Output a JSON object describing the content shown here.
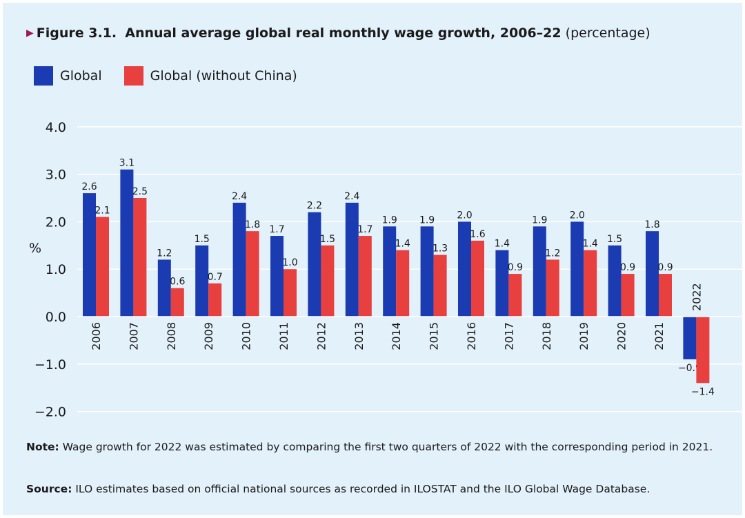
{
  "title": {
    "marker": "▶",
    "label": "Figure 3.1.",
    "main": "Annual average global real monthly wage growth, 2006–22",
    "unit": "(percentage)"
  },
  "legend": [
    {
      "label": "Global",
      "color": "#1b3bb3"
    },
    {
      "label": "Global (without China)",
      "color": "#e8403f"
    }
  ],
  "note": {
    "label": "Note:",
    "text": "Wage growth for 2022 was estimated by comparing the first two quarters of 2022 with the corresponding period in 2021."
  },
  "source": {
    "label": "Source:",
    "text": "ILO estimates based on official national sources as recorded in ILOSTAT and the ILO Global Wage Database."
  },
  "chart_data": {
    "type": "bar",
    "ylabel": "%",
    "ylim": [
      -2.0,
      4.0
    ],
    "yticks": [
      "−2.0",
      "−1.0",
      "0.0",
      "1.0",
      "2.0",
      "3.0",
      "4.0"
    ],
    "grid": true,
    "legend_position": "top-left",
    "categories": [
      "2006",
      "2007",
      "2008",
      "2009",
      "2010",
      "2011",
      "2012",
      "2013",
      "2014",
      "2015",
      "2016",
      "2017",
      "2018",
      "2019",
      "2020",
      "2021",
      "2022"
    ],
    "series": [
      {
        "name": "Global",
        "color": "#1b3bb3",
        "values": [
          2.6,
          3.1,
          1.2,
          1.5,
          2.4,
          1.7,
          2.2,
          2.4,
          1.9,
          1.9,
          2.0,
          1.4,
          1.9,
          2.0,
          1.5,
          1.8,
          -0.9
        ],
        "labels": [
          "2.6",
          "3.1",
          "1.2",
          "1.5",
          "2.4",
          "1.7",
          "2.2",
          "2.4",
          "1.9",
          "1.9",
          "2.0",
          "1.4",
          "1.9",
          "2.0",
          "1.5",
          "1.8",
          "−0.9"
        ]
      },
      {
        "name": "Global (without China)",
        "color": "#e8403f",
        "values": [
          2.1,
          2.5,
          0.6,
          0.7,
          1.8,
          1.0,
          1.5,
          1.7,
          1.4,
          1.3,
          1.6,
          0.9,
          1.2,
          1.4,
          0.9,
          0.9,
          -1.4
        ],
        "labels": [
          "2.1",
          "2.5",
          "0.6",
          "0.7",
          "1.8",
          "1.0",
          "1.5",
          "1.7",
          "1.4",
          "1.3",
          "1.6",
          "0.9",
          "1.2",
          "1.4",
          "0.9",
          "0.9",
          "−1.4"
        ]
      }
    ]
  }
}
